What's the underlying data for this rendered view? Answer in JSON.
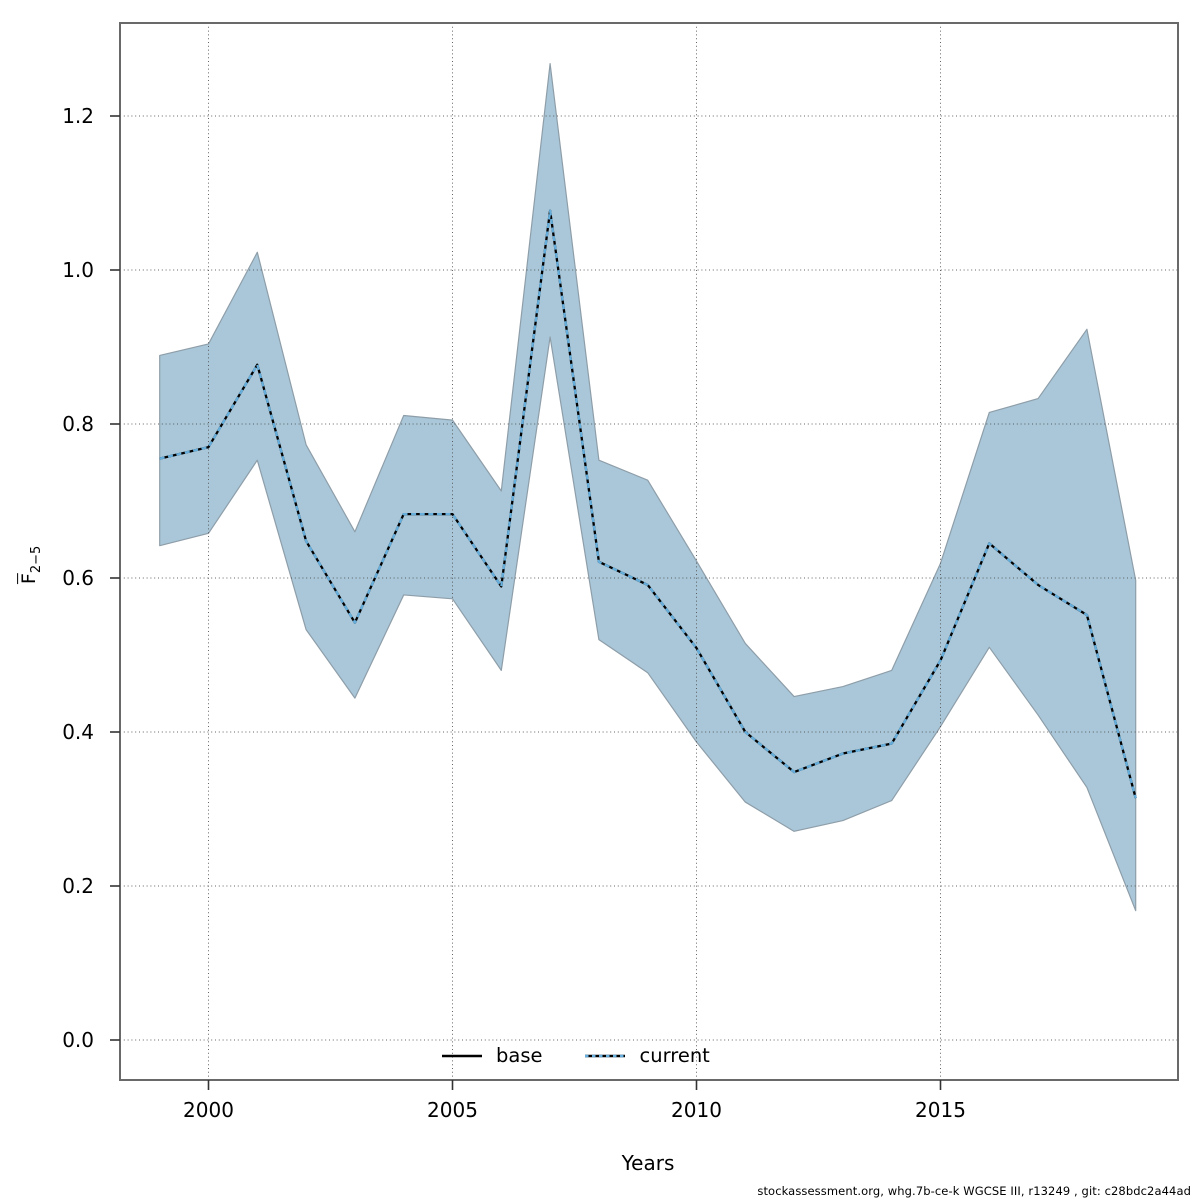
{
  "figure": {
    "y_axis_label": {
      "base": "F",
      "subscript": "2−5"
    },
    "x_axis_label": "Years",
    "footer": "stockassessment.org, whg.7b-ce-k WGCSE III, r13249 , git: c28bdc2a44ad",
    "legend": {
      "items": [
        {
          "label": "base"
        },
        {
          "label": "current"
        }
      ]
    },
    "colors": {
      "band_fill": "#A9C7D9",
      "band_edge": "#8E9EA9",
      "base_line": "#000000",
      "current_line": "#66AEDC",
      "frame": "#696969",
      "grid": "#4A4A4A",
      "tick": "#333333",
      "text": "#000000"
    }
  },
  "chart_data": {
    "type": "line",
    "title": "",
    "xlabel": "Years",
    "ylabel": "Fbar(2-5)",
    "x": [
      1999,
      2000,
      2001,
      2002,
      2003,
      2004,
      2005,
      2006,
      2007,
      2008,
      2009,
      2010,
      2011,
      2012,
      2013,
      2014,
      2015,
      2016,
      2017,
      2018,
      2019
    ],
    "xticks": [
      2000,
      2005,
      2010,
      2015
    ],
    "yticks": [
      0.0,
      0.2,
      0.4,
      0.6,
      0.8,
      1.0,
      1.2
    ],
    "ytick_labels": [
      "0.0",
      "0.2",
      "0.4",
      "0.6",
      "0.8",
      "1.0",
      "1.2"
    ],
    "xlim": [
      1998.2,
      2019.9
    ],
    "ylim": [
      -0.052,
      1.321
    ],
    "grid": true,
    "legend_position": "bottom-center",
    "series": [
      {
        "name": "base",
        "style": "solid-black",
        "note": "coincides with current fit; visible only in gaps of the dotted current line",
        "values": [
          0.755,
          0.77,
          0.877,
          0.648,
          0.542,
          0.683,
          0.683,
          0.589,
          1.077,
          0.621,
          0.591,
          0.509,
          0.4,
          0.348,
          0.372,
          0.385,
          0.493,
          0.645,
          0.591,
          0.552,
          0.314
        ]
      },
      {
        "name": "current",
        "style": "dotted-blue",
        "values": [
          0.755,
          0.77,
          0.877,
          0.648,
          0.542,
          0.683,
          0.683,
          0.589,
          1.077,
          0.621,
          0.591,
          0.509,
          0.4,
          0.348,
          0.372,
          0.385,
          0.493,
          0.645,
          0.591,
          0.552,
          0.314
        ],
        "ci_lower": [
          0.642,
          0.658,
          0.753,
          0.533,
          0.444,
          0.578,
          0.573,
          0.48,
          0.913,
          0.52,
          0.477,
          0.387,
          0.309,
          0.271,
          0.285,
          0.311,
          0.407,
          0.51,
          0.422,
          0.328,
          0.168
        ],
        "ci_upper": [
          0.889,
          0.904,
          1.023,
          0.773,
          0.66,
          0.811,
          0.805,
          0.713,
          1.268,
          0.753,
          0.727,
          0.622,
          0.515,
          0.446,
          0.459,
          0.48,
          0.619,
          0.815,
          0.833,
          0.923,
          0.597
        ]
      }
    ]
  }
}
